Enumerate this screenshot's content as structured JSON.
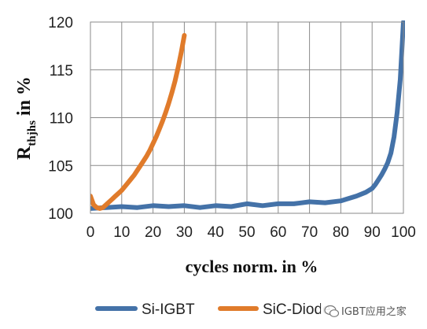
{
  "chart_data": {
    "type": "line",
    "xlabel": "cycles norm. in %",
    "ylabel_main": "R",
    "ylabel_sub": "thjhs",
    "ylabel_rest": " in %",
    "xlim": [
      0,
      100
    ],
    "ylim": [
      100,
      120
    ],
    "x_ticks": [
      "0",
      "10",
      "20",
      "30",
      "40",
      "50",
      "60",
      "70",
      "80",
      "90",
      "100"
    ],
    "y_ticks": [
      "100",
      "105",
      "110",
      "115",
      "120"
    ],
    "grid": true,
    "legend_position": "bottom",
    "series": [
      {
        "name": "Si-IGBT",
        "color": "#4472a8",
        "x": [
          0,
          5,
          10,
          15,
          20,
          25,
          30,
          35,
          40,
          45,
          50,
          55,
          60,
          65,
          70,
          75,
          80,
          82,
          85,
          88,
          90,
          91,
          92,
          93,
          94,
          95,
          96,
          97,
          98,
          99,
          99.5,
          100
        ],
        "y": [
          100.5,
          100.6,
          100.7,
          100.6,
          100.8,
          100.7,
          100.8,
          100.6,
          100.8,
          100.7,
          101.0,
          100.8,
          101.0,
          101.0,
          101.2,
          101.1,
          101.3,
          101.5,
          101.8,
          102.2,
          102.6,
          103.0,
          103.5,
          104.0,
          104.6,
          105.3,
          106.3,
          108.0,
          110.5,
          114.0,
          117.0,
          120.0
        ]
      },
      {
        "name": "SiC-Diode",
        "color": "#e07b2b",
        "x": [
          0,
          1,
          2,
          3,
          4,
          5,
          6,
          7,
          8,
          9,
          10,
          11,
          12,
          13,
          14,
          15,
          16,
          17,
          18,
          19,
          20,
          21,
          22,
          23,
          24,
          25,
          26,
          27,
          28,
          29,
          30
        ],
        "y": [
          101.8,
          100.9,
          100.6,
          100.5,
          100.6,
          100.9,
          101.2,
          101.5,
          101.8,
          102.1,
          102.4,
          102.8,
          103.2,
          103.6,
          104.0,
          104.5,
          105.0,
          105.5,
          106.0,
          106.6,
          107.3,
          108.0,
          108.8,
          109.6,
          110.5,
          111.5,
          112.6,
          113.8,
          115.2,
          116.8,
          118.6
        ]
      }
    ]
  },
  "watermark": {
    "text": "IGBT应用之家",
    "icon": "wechat-icon"
  }
}
